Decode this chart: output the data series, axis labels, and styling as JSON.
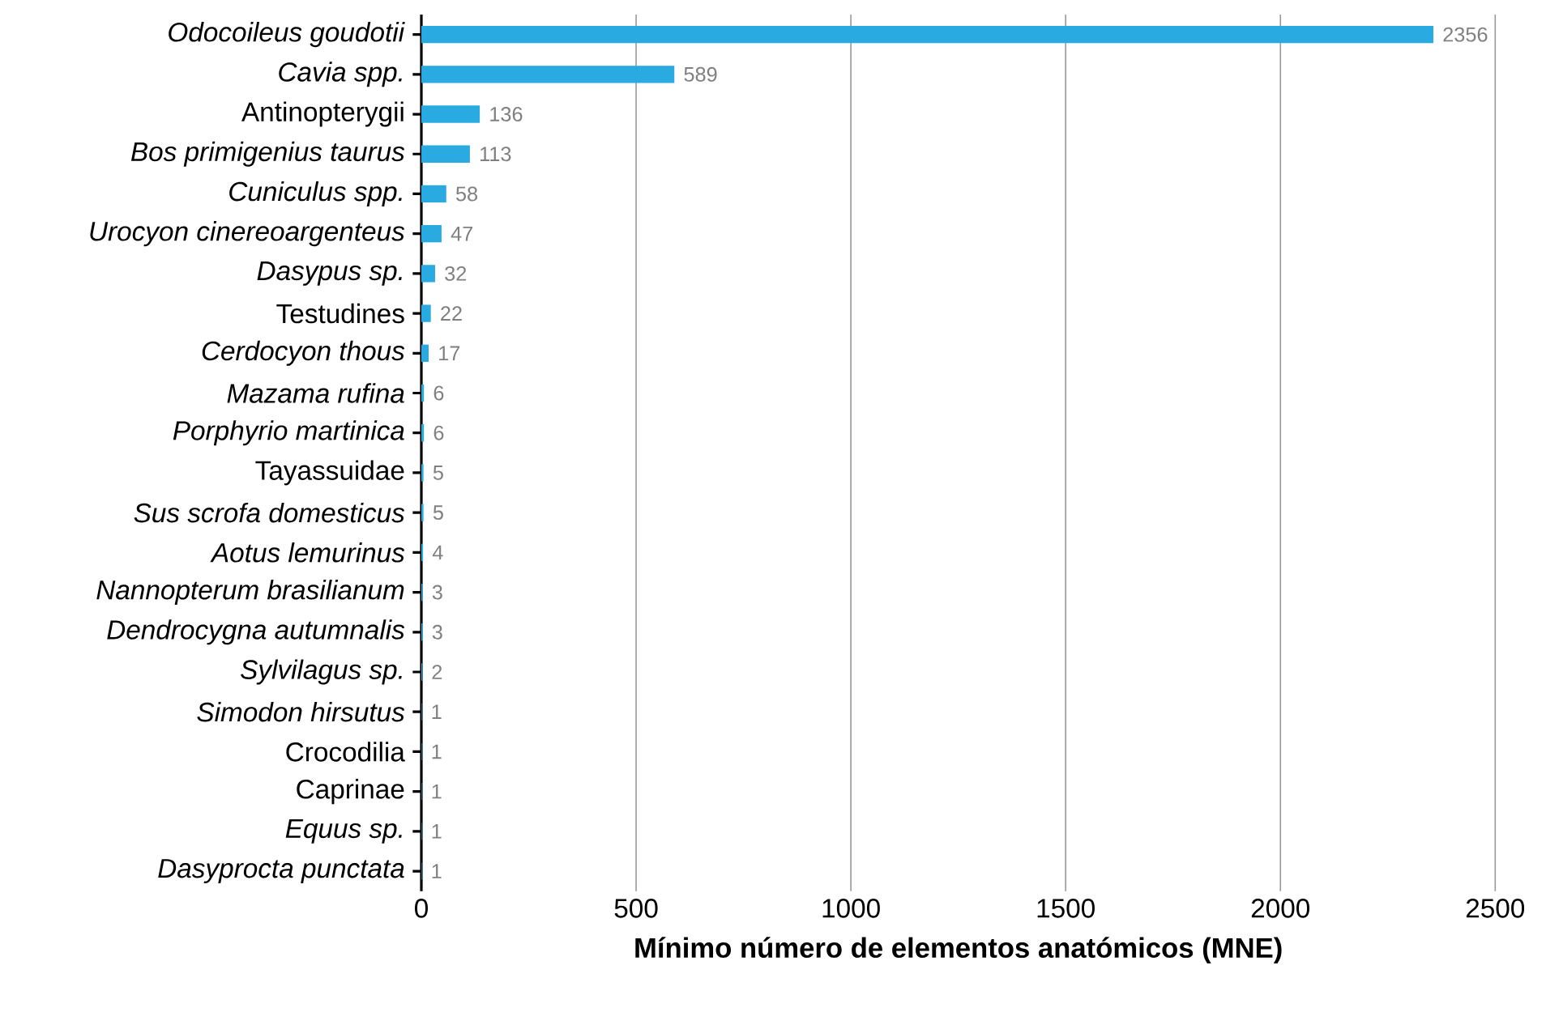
{
  "chart_data": {
    "type": "bar",
    "orientation": "horizontal",
    "xlabel": "**Mínimo número de elementos anatómicos (MNE)**",
    "categories": [
      "*Odocoileus goudotii*",
      "*Cavia spp.*",
      "Antinopterygii",
      "*Bos primigenius taurus*",
      "*Cuniculus spp.*",
      "*Urocyon cinereoargenteus*",
      "*Dasypus sp.*",
      "Testudines",
      "*Cerdocyon thous*",
      "*Mazama rufina*",
      "*Porphyrio martinica*",
      "Tayassuidae",
      "*Sus scrofa domesticus*",
      "*Aotus lemurinus*",
      "*Nannopterum brasilianum*",
      "*Dendrocygna autumnalis*",
      "*Sylvilagus sp.*",
      "*Simodon hirsutus*",
      "Crocodilia",
      "Caprinae",
      "*Equus sp.*",
      "*Dasyprocta punctata*"
    ],
    "values": [
      2356,
      589,
      136,
      113,
      58,
      47,
      32,
      22,
      17,
      6,
      6,
      5,
      5,
      4,
      3,
      3,
      2,
      1,
      1,
      1,
      1,
      1
    ],
    "color": "#29abe2",
    "data_labels": true,
    "grid": "x",
    "xlim": [
      0,
      2500
    ],
    "xticks": [
      0,
      500,
      1000,
      1500,
      2000,
      2500
    ]
  }
}
